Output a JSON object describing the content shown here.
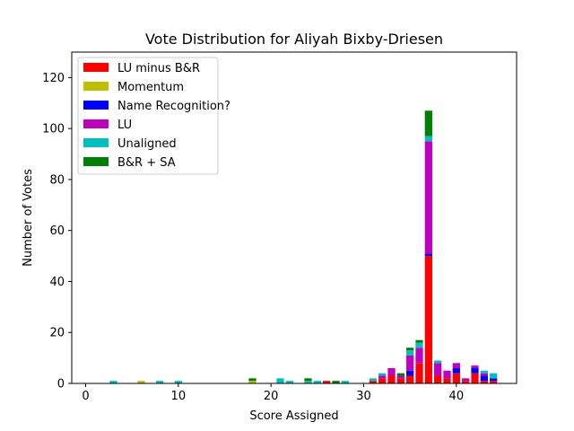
{
  "chart_data": {
    "type": "bar",
    "stacked": true,
    "title": "Vote Distribution for Aliyah Bixby-Driesen",
    "xlabel": "Score Assigned",
    "ylabel": "Number of Votes",
    "xlim": [
      -1.5,
      46.5
    ],
    "ylim": [
      0,
      130
    ],
    "xticks": [
      0,
      10,
      20,
      30,
      40
    ],
    "yticks": [
      0,
      20,
      40,
      60,
      80,
      100,
      120
    ],
    "grid": false,
    "legend_position": "top-left",
    "x": [
      3,
      6,
      8,
      10,
      18,
      21,
      22,
      24,
      25,
      26,
      27,
      28,
      31,
      32,
      33,
      34,
      35,
      36,
      37,
      38,
      39,
      40,
      41,
      42,
      43,
      44
    ],
    "series": [
      {
        "name": "LU minus B&R",
        "color": "#ff0000",
        "values": [
          0,
          0,
          0,
          0,
          0,
          0,
          0,
          0,
          0,
          1,
          0,
          0,
          1,
          2,
          3,
          2,
          3,
          8,
          50,
          3,
          2,
          4,
          1,
          4,
          1,
          1
        ]
      },
      {
        "name": "Momentum",
        "color": "#bfbf00",
        "values": [
          0,
          1,
          0,
          0,
          1,
          0,
          0,
          0,
          0,
          0,
          0,
          0,
          0,
          0,
          0,
          0,
          0,
          0,
          0,
          0,
          0,
          0,
          0,
          0,
          0,
          0
        ]
      },
      {
        "name": "Name Recognition?",
        "color": "#0000ff",
        "values": [
          0,
          0,
          0,
          0,
          0,
          0,
          0,
          0,
          0,
          0,
          0,
          0,
          0,
          0,
          0,
          0,
          2,
          0,
          1,
          0,
          0,
          2,
          0,
          2,
          2,
          1
        ]
      },
      {
        "name": "LU",
        "color": "#bf00bf",
        "values": [
          0,
          0,
          0,
          0,
          0,
          0,
          0,
          0,
          0,
          0,
          0,
          0,
          0,
          1,
          3,
          1,
          6,
          6,
          44,
          5,
          3,
          2,
          1,
          1,
          1,
          0
        ]
      },
      {
        "name": "Unaligned",
        "color": "#00bfbf",
        "values": [
          1,
          0,
          1,
          1,
          0,
          2,
          1,
          1,
          1,
          0,
          0,
          1,
          1,
          1,
          0,
          0,
          2,
          2,
          2,
          1,
          0,
          0,
          0,
          0,
          1,
          2
        ]
      },
      {
        "name": "B&R + SA",
        "color": "#008000",
        "values": [
          0,
          0,
          0,
          0,
          1,
          0,
          0,
          1,
          0,
          0,
          1,
          0,
          0,
          0,
          0,
          1,
          1,
          1,
          10,
          0,
          0,
          0,
          0,
          0,
          0,
          0
        ]
      }
    ]
  }
}
